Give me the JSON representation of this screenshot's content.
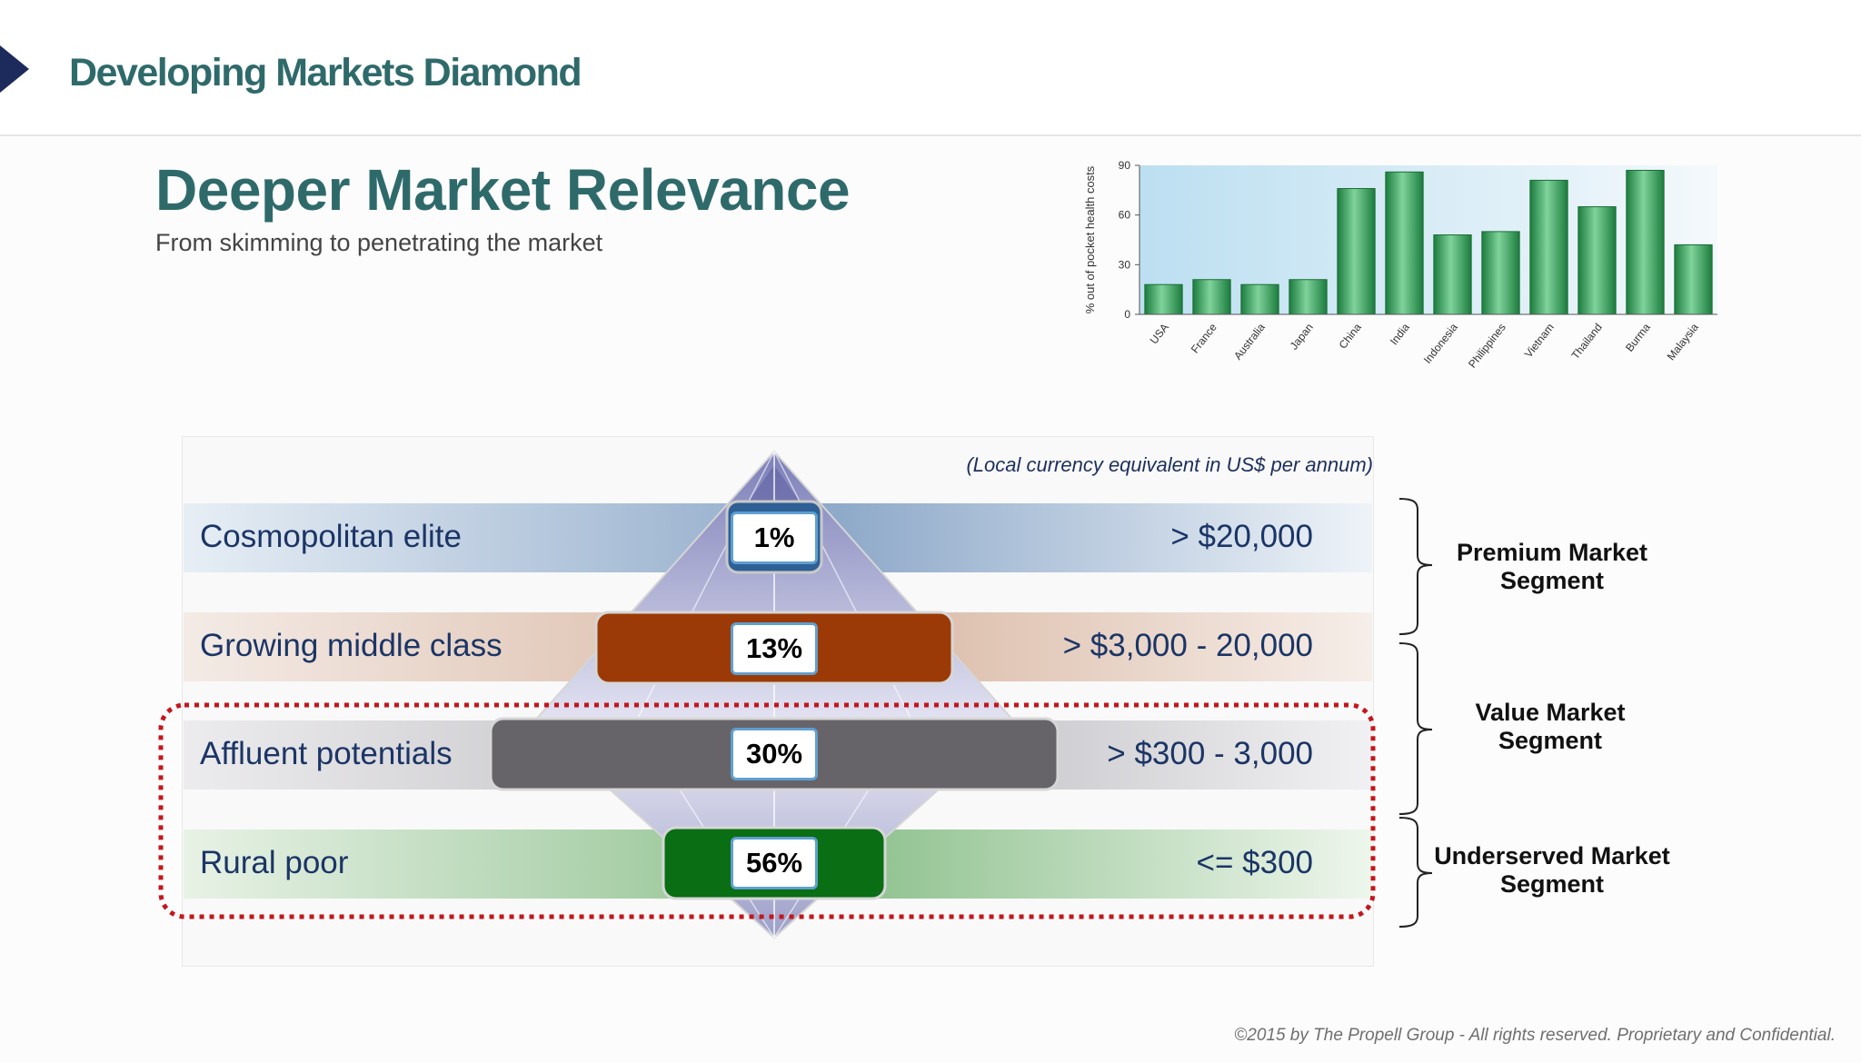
{
  "header": {
    "title": "Developing Markets Diamond"
  },
  "slide": {
    "title": "Deeper Market Relevance",
    "subtitle": "From skimming to penetrating the market"
  },
  "chart_data": {
    "type": "bar",
    "title": "",
    "xlabel": "",
    "ylabel": "% out of pocket health costs",
    "ylim": [
      0,
      90
    ],
    "yticks": [
      0,
      30,
      60,
      90
    ],
    "grid": false,
    "categories": [
      "USA",
      "France",
      "Australia",
      "Japan",
      "China",
      "India",
      "Indonesia",
      "Philippines",
      "Vietnam",
      "Thailand",
      "Burma",
      "Malaysia"
    ],
    "values": [
      18,
      21,
      18,
      21,
      76,
      86,
      48,
      50,
      81,
      65,
      87,
      42
    ],
    "bar_color": "#2e9b55"
  },
  "diamond": {
    "note": "(Local currency equivalent in US$ per annum)",
    "segments": [
      {
        "label": "Cosmopolitan elite",
        "pct": "1%",
        "income": "> $20,000",
        "color": "#2e5f95"
      },
      {
        "label": "Growing middle class",
        "pct": "13%",
        "income": "> $3,000 - 20,000",
        "color": "#9b3a06"
      },
      {
        "label": "Affluent potentials",
        "pct": "30%",
        "income": "> $300 - 3,000",
        "color": "#666468"
      },
      {
        "label": "Rural poor",
        "pct": "56%",
        "income": "<= $300",
        "color": "#0a6e14"
      }
    ],
    "markets": [
      {
        "label": "Premium Market Segment"
      },
      {
        "label": "Value Market Segment"
      },
      {
        "label": "Underserved Market Segment"
      }
    ]
  },
  "footer": {
    "copyright": "©2015 by The Propell Group -  All rights reserved. Proprietary and Confidential."
  }
}
